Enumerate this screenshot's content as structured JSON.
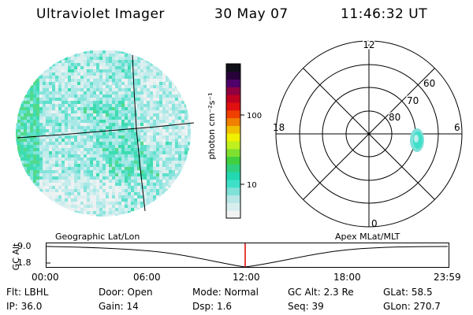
{
  "header": {
    "instrument": "Ultraviolet Imager",
    "date": "30 May 07",
    "time": "11:46:32 UT"
  },
  "colorbar": {
    "unit_label": "photon cm⁻²s⁻¹",
    "ticks": [
      "100",
      "10"
    ],
    "colors": [
      "#f2f2f2",
      "#d8eeee",
      "#b8e6e6",
      "#7fe0d8",
      "#3fe0c8",
      "#22d8b0",
      "#30d080",
      "#40d040",
      "#80e030",
      "#c0f020",
      "#f0f000",
      "#f0c000",
      "#f08000",
      "#f04000",
      "#e01010",
      "#c00020",
      "#900040",
      "#50006a",
      "#28003a",
      "#101018"
    ]
  },
  "earth_image": {
    "palette": [
      "#eef2f2",
      "#dcefef",
      "#c4ecec",
      "#a8e8e6",
      "#86e4dc",
      "#5ee0cc",
      "#3ddcb0",
      "#52da8c"
    ]
  },
  "polar_plot": {
    "mlt_labels": {
      "top": "12",
      "left": "18",
      "right": "6",
      "bottom": "0"
    },
    "lat_labels": [
      "60",
      "70",
      "80"
    ]
  },
  "map_labels": {
    "left": "Geographic Lat/Lon",
    "right": "Apex MLat/MLT"
  },
  "timeline": {
    "axis_label": "GC Alt",
    "y_ticks": [
      "9.0",
      "1.8"
    ],
    "x_ticks": [
      "00:00",
      "06:00",
      "12:00",
      "18:00",
      "23:59"
    ],
    "marker_color": "#e00000"
  },
  "footer": {
    "flt": "Flt: LBHL",
    "door": "Door: Open",
    "mode": "Mode: Normal",
    "gc_alt": "GC Alt: 2.3 Re",
    "glat": "GLat:  58.5",
    "ip": "IP: 36.0",
    "gain": "Gain: 14",
    "dsp": "Dsp:     1.6",
    "seq": "Seq: 39",
    "glon": "GLon: 270.7"
  }
}
